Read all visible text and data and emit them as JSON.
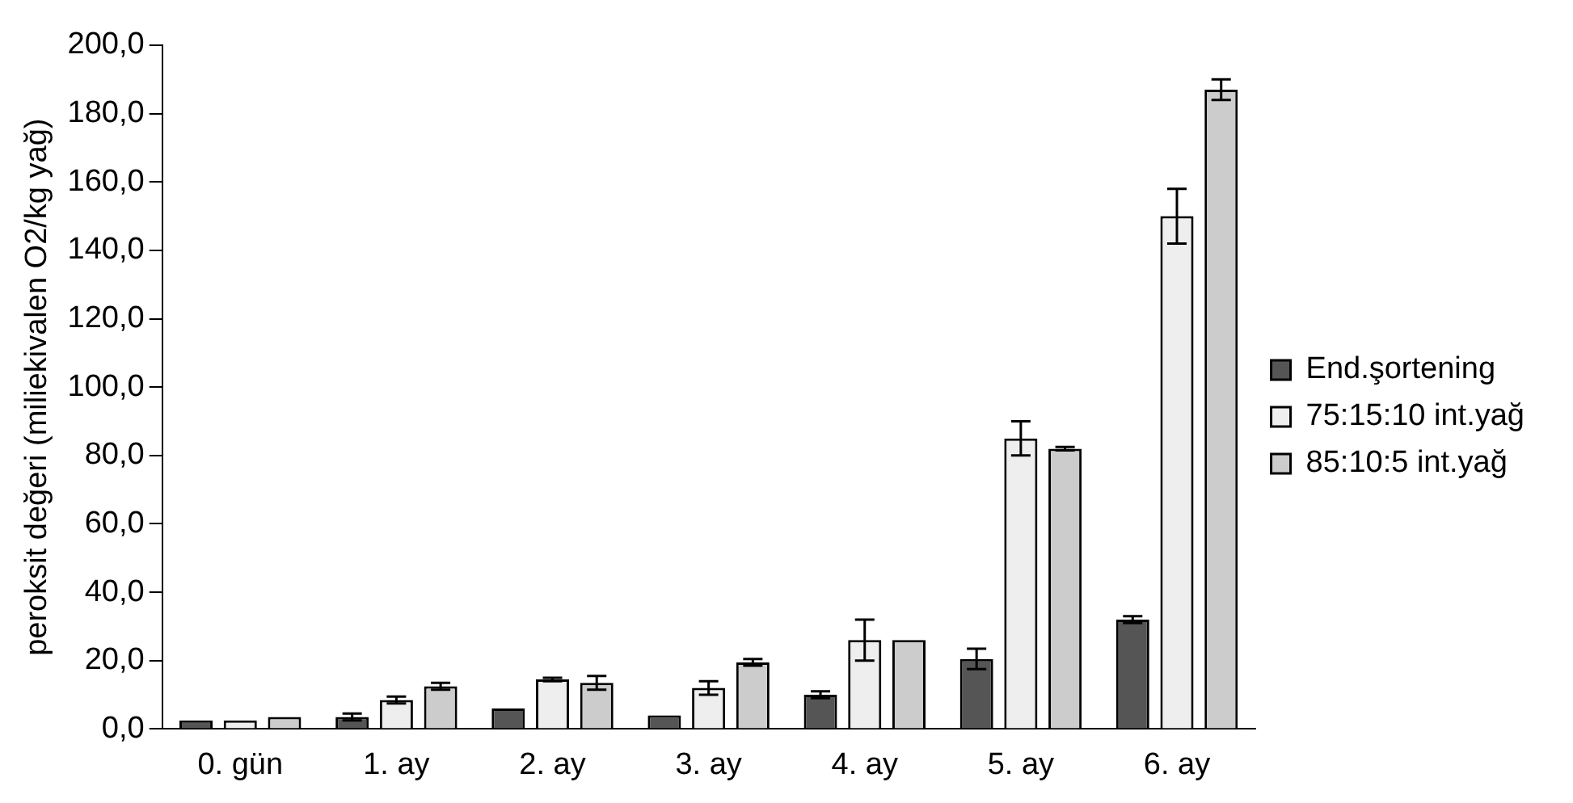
{
  "chart_data": {
    "type": "bar",
    "ylabel": "peroksit değeri (miliekivalen O2/kg yağ)",
    "categories": [
      "0. gün",
      "1. ay",
      "2. ay",
      "3. ay",
      "4. ay",
      "5. ay",
      "6. ay"
    ],
    "series": [
      {
        "name": "End.şortening",
        "color": "#555555",
        "values": [
          2.5,
          3.5,
          6,
          4,
          10,
          20.5,
          32
        ],
        "errors": [
          null,
          1,
          null,
          null,
          1,
          3,
          1
        ]
      },
      {
        "name": "75:15:10 int.yağ",
        "color": "#eeeeee",
        "values": [
          2.5,
          8.5,
          14.5,
          12,
          26,
          85,
          150
        ],
        "errors": [
          null,
          1,
          0.5,
          2,
          6,
          5,
          8
        ]
      },
      {
        "name": "85:10:5 int.yağ",
        "color": "#cccccc",
        "values": [
          3.5,
          12.5,
          13.5,
          19.5,
          26,
          82,
          187
        ],
        "errors": [
          null,
          1,
          2,
          1,
          null,
          0.5,
          3
        ]
      }
    ],
    "ylim": [
      0,
      200
    ],
    "yticks": [
      {
        "value": 0,
        "label": "0,0"
      },
      {
        "value": 20,
        "label": "20,0"
      },
      {
        "value": 40,
        "label": "40,0"
      },
      {
        "value": 60,
        "label": "60,0"
      },
      {
        "value": 80,
        "label": "80,0"
      },
      {
        "value": 100,
        "label": "100,0"
      },
      {
        "value": 120,
        "label": "120,0"
      },
      {
        "value": 140,
        "label": "140,0"
      },
      {
        "value": 160,
        "label": "160,0"
      },
      {
        "value": 180,
        "label": "180,0"
      },
      {
        "value": 200,
        "label": "200,0"
      }
    ],
    "grid": false,
    "legend": "right"
  }
}
